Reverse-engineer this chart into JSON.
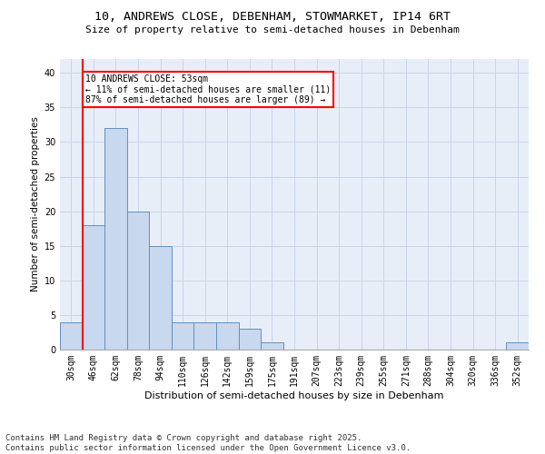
{
  "title_line1": "10, ANDREWS CLOSE, DEBENHAM, STOWMARKET, IP14 6RT",
  "title_line2": "Size of property relative to semi-detached houses in Debenham",
  "xlabel": "Distribution of semi-detached houses by size in Debenham",
  "ylabel": "Number of semi-detached properties",
  "bar_color": "#c8d8ee",
  "bar_edge_color": "#6090c0",
  "grid_color": "#c8d4e8",
  "bg_color": "#e8eef8",
  "annotation_text": "10 ANDREWS CLOSE: 53sqm\n← 11% of semi-detached houses are smaller (11)\n87% of semi-detached houses are larger (89) →",
  "vline_color": "red",
  "categories": [
    "30sqm",
    "46sqm",
    "62sqm",
    "78sqm",
    "94sqm",
    "110sqm",
    "126sqm",
    "142sqm",
    "159sqm",
    "175sqm",
    "191sqm",
    "207sqm",
    "223sqm",
    "239sqm",
    "255sqm",
    "271sqm",
    "288sqm",
    "304sqm",
    "320sqm",
    "336sqm",
    "352sqm"
  ],
  "values": [
    4,
    18,
    32,
    20,
    15,
    4,
    4,
    4,
    3,
    1,
    0,
    0,
    0,
    0,
    0,
    0,
    0,
    0,
    0,
    0,
    1
  ],
  "ylim": [
    0,
    42
  ],
  "yticks": [
    0,
    5,
    10,
    15,
    20,
    25,
    30,
    35,
    40
  ],
  "footer": "Contains HM Land Registry data © Crown copyright and database right 2025.\nContains public sector information licensed under the Open Government Licence v3.0.",
  "footer_fontsize": 6.5,
  "title1_fontsize": 9.5,
  "title2_fontsize": 8.0,
  "ylabel_fontsize": 7.5,
  "xlabel_fontsize": 8.0,
  "tick_fontsize": 7.0,
  "annot_fontsize": 7.0
}
